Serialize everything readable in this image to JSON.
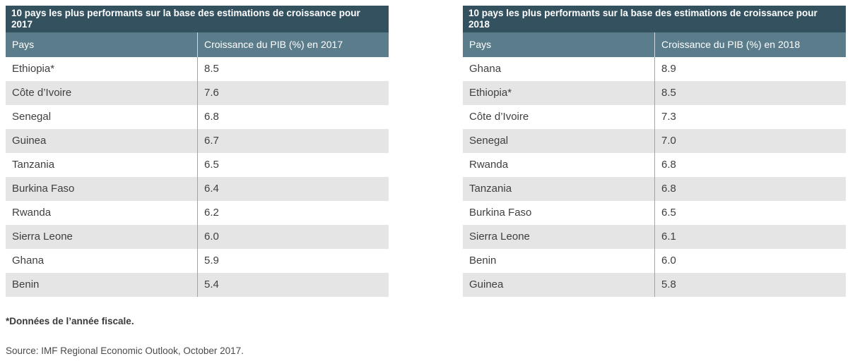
{
  "chart_data": [
    {
      "type": "table",
      "title": "10 pays les plus performants sur la base des estimations de croissance pour 2017",
      "columns": [
        "Pays",
        "Croissance du PIB (%) en 2017"
      ],
      "rows": [
        [
          "Ethiopia*",
          "8.5"
        ],
        [
          "Côte d’Ivoire",
          "7.6"
        ],
        [
          "Senegal",
          "6.8"
        ],
        [
          "Guinea",
          "6.7"
        ],
        [
          "Tanzania",
          "6.5"
        ],
        [
          "Burkina Faso",
          "6.4"
        ],
        [
          "Rwanda",
          "6.2"
        ],
        [
          "Sierra Leone",
          "6.0"
        ],
        [
          "Ghana",
          "5.9"
        ],
        [
          "Benin",
          "5.4"
        ]
      ],
      "layout": {
        "header_background": "#5b7d8b",
        "title_background": "#33515f",
        "alt_row_background": "#e5e5e5",
        "zebra_striping": true
      }
    },
    {
      "type": "table",
      "title": "10 pays les plus performants sur la base des estimations de croissance pour 2018",
      "columns": [
        "Pays",
        "Croissance du PIB (%) en 2018"
      ],
      "rows": [
        [
          "Ghana",
          "8.9"
        ],
        [
          "Ethiopia*",
          "8.5"
        ],
        [
          "Côte d’Ivoire",
          "7.3"
        ],
        [
          "Senegal",
          "7.0"
        ],
        [
          "Rwanda",
          "6.8"
        ],
        [
          "Tanzania",
          "6.8"
        ],
        [
          "Burkina Faso",
          "6.5"
        ],
        [
          "Sierra Leone",
          "6.1"
        ],
        [
          "Benin",
          "6.0"
        ],
        [
          "Guinea",
          "5.8"
        ]
      ],
      "layout": {
        "header_background": "#5b7d8b",
        "title_background": "#33515f",
        "alt_row_background": "#e5e5e5",
        "zebra_striping": true
      }
    }
  ],
  "footnote": "*Données de l’année fiscale.",
  "source": "Source: IMF Regional Economic Outlook, October 2017.",
  "colors": {
    "title_bar": "#33515f",
    "header_bar": "#5b7d8b",
    "row_alt": "#e5e5e5",
    "body_text": "#3f3f3f"
  }
}
